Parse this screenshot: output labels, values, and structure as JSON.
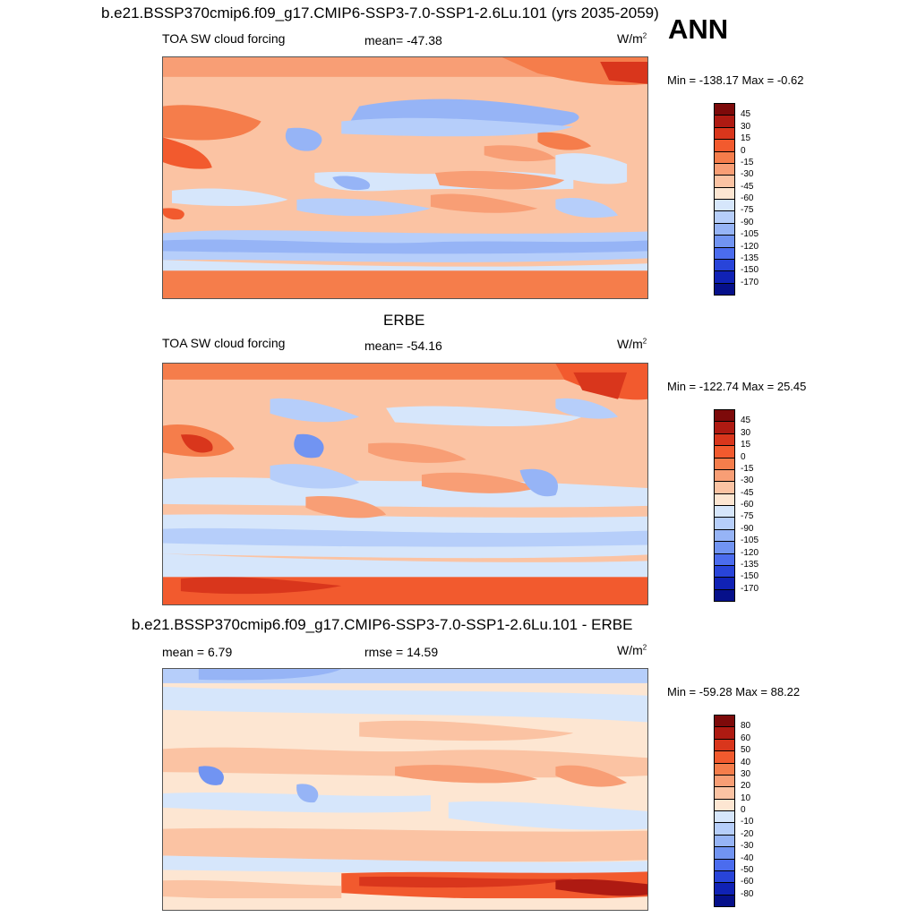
{
  "header": {
    "title": "b.e21.BSSP370cmip6.f09_g17.CMIP6-SSP3-7.0-SSP1-2.6Lu.101 (yrs 2035-2059)",
    "season": "ANN"
  },
  "panels": [
    {
      "id": "model",
      "left_label": "TOA SW cloud forcing",
      "center_label": "mean= -47.38",
      "units_base": "W/m",
      "units_exp": "2",
      "minmax": "Min = -138.17 Max =  -0.62",
      "colorbar": {
        "labels": [
          "45",
          "30",
          "15",
          "0",
          "-15",
          "-30",
          "-45",
          "-60",
          "-75",
          "-90",
          "-105",
          "-120",
          "-135",
          "-150",
          "-170"
        ]
      }
    },
    {
      "id": "obs",
      "title": "ERBE",
      "left_label": "TOA SW cloud forcing",
      "center_label": "mean= -54.16",
      "units_base": "W/m",
      "units_exp": "2",
      "minmax": "Min = -122.74 Max =  25.45",
      "colorbar": {
        "labels": [
          "45",
          "30",
          "15",
          "0",
          "-15",
          "-30",
          "-45",
          "-60",
          "-75",
          "-90",
          "-105",
          "-120",
          "-135",
          "-150",
          "-170"
        ]
      }
    },
    {
      "id": "diff",
      "title": "b.e21.BSSP370cmip6.f09_g17.CMIP6-SSP3-7.0-SSP1-2.6Lu.101 - ERBE",
      "left_label": "mean =   6.79",
      "center_label": "rmse =  14.59",
      "units_base": "W/m",
      "units_exp": "2",
      "minmax": "Min = -59.28 Max =  88.22",
      "colorbar": {
        "labels": [
          "80",
          "60",
          "50",
          "40",
          "30",
          "20",
          "10",
          "0",
          "-10",
          "-20",
          "-30",
          "-40",
          "-50",
          "-60",
          "-80"
        ]
      }
    }
  ],
  "colors": {
    "scale": [
      "#7d0a0a",
      "#ae1a12",
      "#d9361c",
      "#f25a2e",
      "#f57d4b",
      "#f89e75",
      "#fbc3a3",
      "#fde6d2",
      "#d6e6fb",
      "#b6cefa",
      "#96b4f6",
      "#7194f2",
      "#4b6cee",
      "#2844d9",
      "#1022b5",
      "#06108a"
    ]
  }
}
